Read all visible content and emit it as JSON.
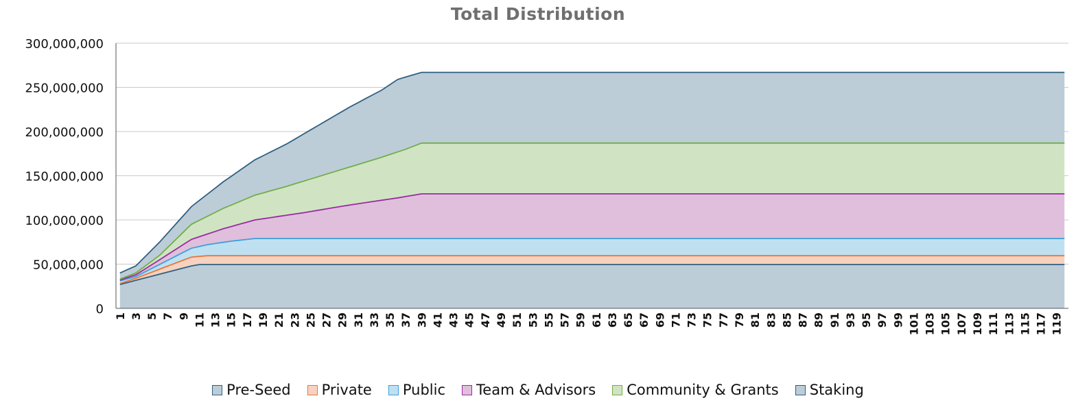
{
  "chart_data": {
    "type": "area",
    "title": "Total Distribution",
    "xlabel": "",
    "ylabel": "",
    "x_range": [
      1,
      120
    ],
    "ylim": [
      0,
      300000000
    ],
    "y_ticks": [
      "0",
      "50,000,000",
      "100,000,000",
      "150,000,000",
      "200,000,000",
      "250,000,000",
      "300,000,000"
    ],
    "grid": "horizontal",
    "legend": "bottom",
    "stacked": true,
    "series": [
      {
        "name": "Pre-Seed",
        "fill": "#bccdd8",
        "stroke": "#2f5f80",
        "points": [
          [
            1,
            27000000
          ],
          [
            10,
            48000000
          ],
          [
            11,
            49500000
          ],
          [
            120,
            49500000
          ]
        ]
      },
      {
        "name": "Private",
        "fill": "#f6d2c0",
        "stroke": "#e8763a",
        "points": [
          [
            1,
            28000000
          ],
          [
            3,
            34000000
          ],
          [
            10,
            58000000
          ],
          [
            12,
            59500000
          ],
          [
            120,
            59500000
          ]
        ]
      },
      {
        "name": "Public",
        "fill": "#bfe0f1",
        "stroke": "#3c9fd9",
        "points": [
          [
            1,
            31000000
          ],
          [
            3,
            36000000
          ],
          [
            10,
            68000000
          ],
          [
            12,
            72000000
          ],
          [
            15,
            76000000
          ],
          [
            18,
            79000000
          ],
          [
            120,
            79000000
          ]
        ]
      },
      {
        "name": "Team & Advisors",
        "fill": "#dfbfdc",
        "stroke": "#9a2b9f",
        "points": [
          [
            1,
            32000000
          ],
          [
            3,
            38000000
          ],
          [
            6,
            55000000
          ],
          [
            10,
            78000000
          ],
          [
            14,
            90000000
          ],
          [
            18,
            100000000
          ],
          [
            24,
            108000000
          ],
          [
            30,
            117000000
          ],
          [
            36,
            125000000
          ],
          [
            39,
            129500000
          ],
          [
            120,
            129500000
          ]
        ]
      },
      {
        "name": "Community & Grants",
        "fill": "#d0e4c4",
        "stroke": "#72ad47",
        "points": [
          [
            1,
            33000000
          ],
          [
            3,
            40000000
          ],
          [
            6,
            60000000
          ],
          [
            10,
            95000000
          ],
          [
            14,
            113000000
          ],
          [
            18,
            128000000
          ],
          [
            22,
            138000000
          ],
          [
            26,
            149000000
          ],
          [
            30,
            160000000
          ],
          [
            34,
            171000000
          ],
          [
            37,
            180000000
          ],
          [
            39,
            187000000
          ],
          [
            120,
            187000000
          ]
        ]
      },
      {
        "name": "Staking",
        "fill": "#bccdd8",
        "stroke": "#2f5f80",
        "points": [
          [
            1,
            40000000
          ],
          [
            3,
            48000000
          ],
          [
            6,
            75000000
          ],
          [
            10,
            115000000
          ],
          [
            14,
            143000000
          ],
          [
            18,
            168000000
          ],
          [
            22,
            186000000
          ],
          [
            26,
            207000000
          ],
          [
            30,
            228000000
          ],
          [
            34,
            247000000
          ],
          [
            36,
            259000000
          ],
          [
            39,
            267000000
          ],
          [
            120,
            267000000
          ]
        ]
      }
    ]
  }
}
